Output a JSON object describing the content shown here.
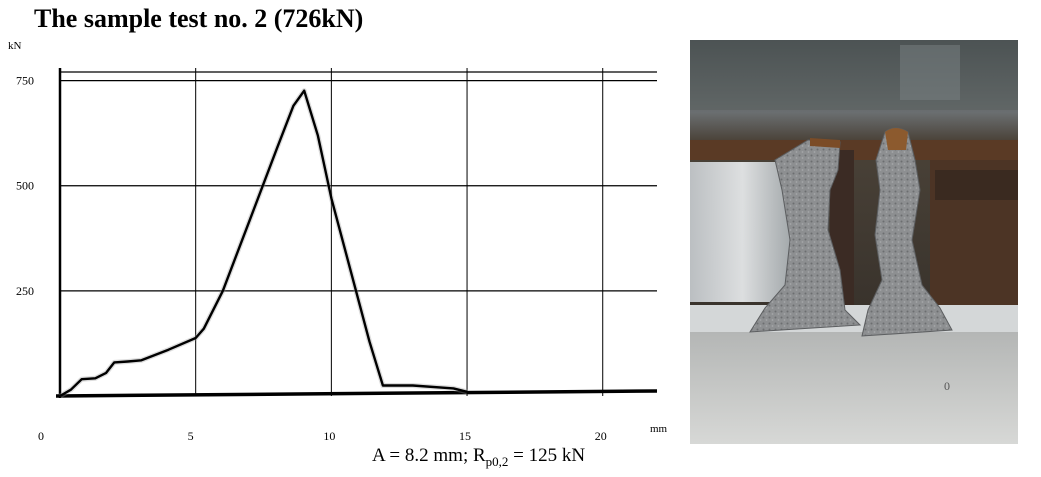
{
  "title": "The sample test no. 2 (726kN)",
  "caption": {
    "prefix": "A = 8.2 mm; R",
    "subscript": "p0,2",
    "suffix": " = 125 kN"
  },
  "chart_data": {
    "type": "line",
    "ylabel": "kN",
    "xlabel": "mm",
    "xlim": [
      0,
      22
    ],
    "ylim": [
      0,
      780
    ],
    "x_ticks": [
      0,
      5,
      10,
      15,
      20
    ],
    "y_ticks": [
      250,
      500,
      750
    ],
    "grid": true,
    "series": [
      {
        "values": [
          [
            0,
            0
          ],
          [
            0.4,
            15
          ],
          [
            0.8,
            40
          ],
          [
            1.3,
            42
          ],
          [
            1.7,
            55
          ],
          [
            2.0,
            80
          ],
          [
            2.5,
            82
          ],
          [
            3.0,
            85
          ],
          [
            4.0,
            110
          ],
          [
            5.0,
            138
          ],
          [
            5.3,
            160
          ],
          [
            6.0,
            250
          ],
          [
            7.0,
            420
          ],
          [
            8.0,
            590
          ],
          [
            8.6,
            690
          ],
          [
            9.0,
            726
          ],
          [
            9.5,
            620
          ],
          [
            10.0,
            470
          ],
          [
            10.7,
            300
          ],
          [
            11.4,
            130
          ],
          [
            11.9,
            25
          ],
          [
            13.0,
            25
          ],
          [
            14.5,
            18
          ],
          [
            15.0,
            10
          ]
        ]
      }
    ]
  },
  "photo": {
    "scratch_mark": "0"
  }
}
